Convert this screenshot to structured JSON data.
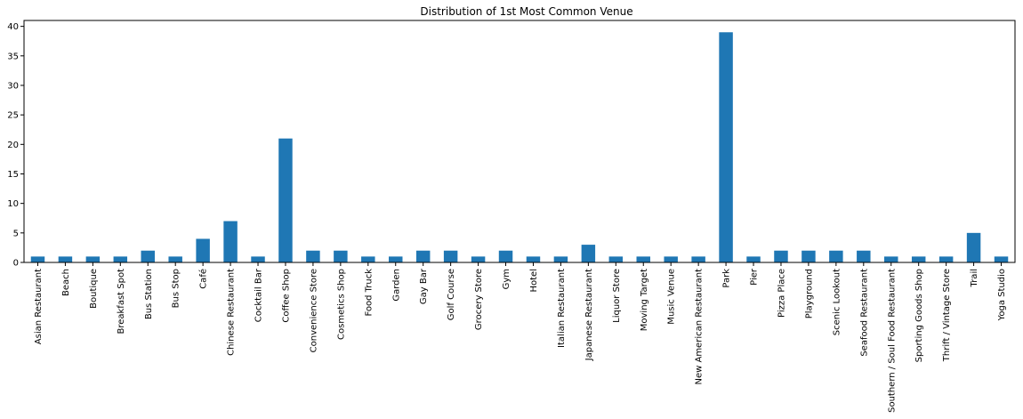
{
  "chart_data": {
    "type": "bar",
    "title": "Distribution of 1st Most Common Venue",
    "xlabel": "",
    "ylabel": "",
    "categories": [
      "Asian Restaurant",
      "Beach",
      "Boutique",
      "Breakfast Spot",
      "Bus Station",
      "Bus Stop",
      "Café",
      "Chinese Restaurant",
      "Cocktail Bar",
      "Coffee Shop",
      "Convenience Store",
      "Cosmetics Shop",
      "Food Truck",
      "Garden",
      "Gay Bar",
      "Golf Course",
      "Grocery Store",
      "Gym",
      "Hotel",
      "Italian Restaurant",
      "Japanese Restaurant",
      "Liquor Store",
      "Moving Target",
      "Music Venue",
      "New American Restaurant",
      "Park",
      "Pier",
      "Pizza Place",
      "Playground",
      "Scenic Lookout",
      "Seafood Restaurant",
      "Southern / Soul Food Restaurant",
      "Sporting Goods Shop",
      "Thrift / Vintage Store",
      "Trail",
      "Yoga Studio"
    ],
    "values": [
      1,
      1,
      1,
      1,
      2,
      1,
      4,
      7,
      1,
      21,
      2,
      2,
      1,
      1,
      2,
      2,
      1,
      2,
      1,
      1,
      3,
      1,
      1,
      1,
      1,
      39,
      1,
      2,
      2,
      2,
      2,
      1,
      1,
      1,
      5,
      1
    ],
    "ylim": [
      0,
      41
    ],
    "yticks": [
      0,
      5,
      10,
      15,
      20,
      25,
      30,
      35,
      40
    ],
    "grid": false,
    "bar_color": "#1f77b4"
  }
}
